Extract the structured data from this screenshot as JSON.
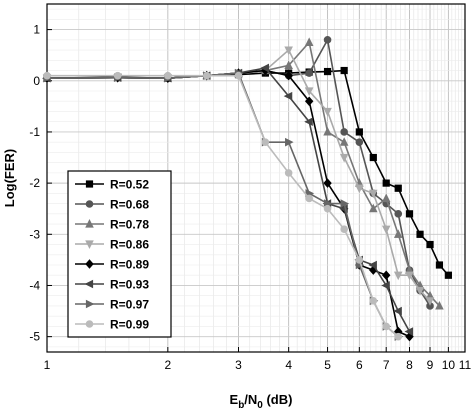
{
  "chart_data": {
    "type": "line",
    "xscale": "log",
    "xlim": [
      1,
      11
    ],
    "ylim": [
      -5.3,
      1.5
    ],
    "grid": true,
    "legend_position": "lower-left",
    "x_ticks": [
      "1",
      "2",
      "3",
      "4",
      "5",
      "6",
      "7",
      "8",
      "9",
      "10",
      "11"
    ],
    "y_ticks": [
      "1",
      "0",
      "-1",
      "-2",
      "-3",
      "-4",
      "-5"
    ],
    "y_tick_values": [
      1,
      0,
      -1,
      -2,
      -3,
      -4,
      -5
    ],
    "ylabel": "Log(FER)",
    "xlabel_main": "E",
    "xlabel_sub1": "b",
    "xlabel_mid": "/N",
    "xlabel_sub2": "0",
    "xlabel_tail": " (dB)",
    "series": [
      {
        "name": "R=0.52",
        "marker": "square",
        "color": "#000000",
        "x": [
          1,
          1.5,
          2,
          2.5,
          3,
          3.5,
          4,
          4.5,
          5,
          5.5,
          6,
          6.5,
          7,
          7.5,
          8,
          8.5,
          9,
          9.5,
          10
        ],
        "y": [
          0.05,
          0.07,
          0.05,
          0.1,
          0.12,
          0.15,
          0.15,
          0.17,
          0.18,
          0.2,
          -1.0,
          -1.5,
          -2.0,
          -2.1,
          -2.6,
          -3.0,
          -3.2,
          -3.6,
          -3.8
        ]
      },
      {
        "name": "R=0.68",
        "marker": "circle",
        "color": "#555555",
        "x": [
          1,
          1.5,
          2,
          2.5,
          3,
          3.5,
          4,
          4.5,
          5,
          5.5,
          6,
          6.5,
          7,
          7.5,
          8,
          8.5,
          9
        ],
        "y": [
          0.05,
          0.06,
          0.05,
          0.1,
          0.15,
          0.2,
          0.1,
          0.15,
          0.8,
          -1.0,
          -1.2,
          -2.2,
          -2.4,
          -2.6,
          -3.7,
          -4.1,
          -4.4
        ]
      },
      {
        "name": "R=0.78",
        "marker": "triangle-up",
        "color": "#777777",
        "x": [
          1,
          1.5,
          2,
          2.5,
          3,
          3.5,
          4,
          4.5,
          5,
          5.5,
          6,
          6.5,
          7,
          7.5,
          8,
          8.5,
          9,
          9.5
        ],
        "y": [
          0.05,
          0.06,
          0.05,
          0.1,
          0.15,
          0.2,
          0.3,
          0.75,
          -1.0,
          -1.2,
          -2.0,
          -2.5,
          -2.3,
          -3.0,
          -3.7,
          -4.0,
          -4.2,
          -4.4
        ]
      },
      {
        "name": "R=0.86",
        "marker": "triangle-down",
        "color": "#aaaaaa",
        "x": [
          1,
          1.5,
          2,
          2.5,
          3,
          3.5,
          4,
          4.5,
          5,
          5.5,
          6,
          6.5,
          7,
          7.5,
          8,
          8.5,
          9
        ],
        "y": [
          0.05,
          0.06,
          0.05,
          0.1,
          0.15,
          0.2,
          0.6,
          -0.2,
          -0.6,
          -1.5,
          -2.1,
          -2.2,
          -2.9,
          -3.8,
          -3.8,
          -4.1,
          -4.3
        ]
      },
      {
        "name": "R=0.89",
        "marker": "diamond",
        "color": "#000000",
        "x": [
          1,
          1.5,
          2,
          2.5,
          3,
          3.5,
          4,
          4.5,
          5,
          5.5,
          6,
          6.5,
          7,
          7.5,
          8
        ],
        "y": [
          0.05,
          0.06,
          0.05,
          0.1,
          0.15,
          0.2,
          0.1,
          -0.4,
          -2.0,
          -2.5,
          -3.6,
          -3.7,
          -3.8,
          -4.9,
          -5.0
        ]
      },
      {
        "name": "R=0.93",
        "marker": "triangle-left",
        "color": "#444444",
        "x": [
          1,
          1.5,
          2,
          2.5,
          3,
          3.5,
          4,
          4.5,
          5,
          5.5,
          6,
          6.5,
          7,
          7.5,
          8
        ],
        "y": [
          0.05,
          0.06,
          0.05,
          0.1,
          0.15,
          0.25,
          -0.3,
          -0.8,
          -2.4,
          -2.5,
          -3.5,
          -3.6,
          -4.0,
          -4.5,
          -4.9
        ]
      },
      {
        "name": "R=0.97",
        "marker": "triangle-right",
        "color": "#666666",
        "x": [
          1,
          1.5,
          2,
          2.5,
          3,
          3.5,
          4,
          4.5,
          5,
          5.5,
          6,
          6.5,
          7,
          7.5
        ],
        "y": [
          0.05,
          0.06,
          0.05,
          0.1,
          0.15,
          -1.2,
          -1.2,
          -2.2,
          -2.4,
          -2.4,
          -3.6,
          -4.3,
          -4.8,
          -5.0
        ]
      },
      {
        "name": "R=0.99",
        "marker": "circle",
        "color": "#bbbbbb",
        "x": [
          1,
          1.5,
          2,
          2.5,
          3,
          3.5,
          4,
          4.5,
          5,
          5.5,
          6,
          6.5,
          7,
          7.5
        ],
        "y": [
          0.1,
          0.1,
          0.1,
          0.1,
          0.1,
          -1.2,
          -1.8,
          -2.3,
          -2.5,
          -2.9,
          -3.5,
          -4.3,
          -4.8,
          -5.0
        ]
      }
    ]
  }
}
